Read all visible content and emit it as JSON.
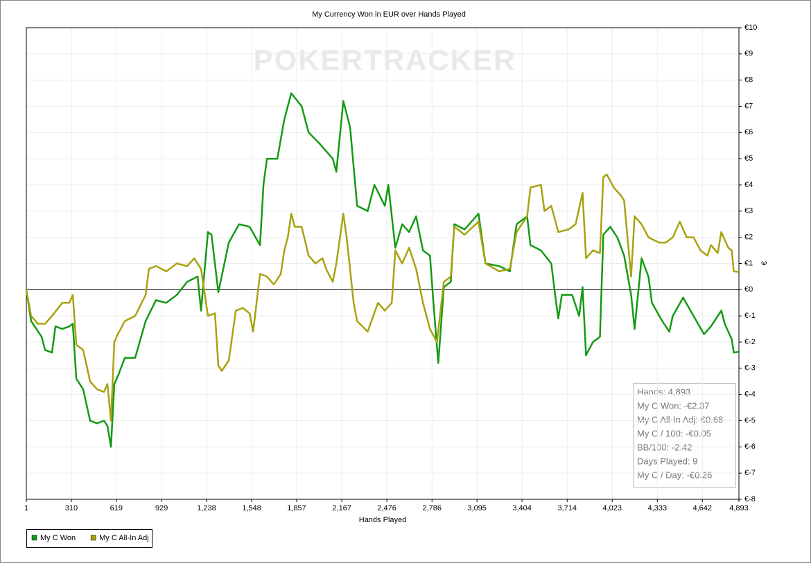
{
  "chart_data": {
    "type": "line",
    "title": "My Currency Won in EUR over Hands Played",
    "watermark": "POKERTRACKER",
    "x_label": "Hands Played",
    "y_label": "€",
    "xlim": [
      1,
      4893
    ],
    "ylim": [
      -8,
      10
    ],
    "grid": true,
    "legend": "bottom-left",
    "xticks": [
      1,
      310,
      619,
      929,
      {
        "value": 1238,
        "label": "1,238"
      },
      {
        "value": 1548,
        "label": "1,548"
      },
      {
        "value": 1857,
        "label": "1,857"
      },
      {
        "value": 2167,
        "label": "2,167"
      },
      {
        "value": 2476,
        "label": "2,476"
      },
      {
        "value": 2786,
        "label": "2,786"
      },
      {
        "value": 3095,
        "label": "3,095"
      },
      {
        "value": 3404,
        "label": "3,404"
      },
      {
        "value": 3714,
        "label": "3,714"
      },
      {
        "value": 4023,
        "label": "4,023"
      },
      {
        "value": 4333,
        "label": "4,333"
      },
      {
        "value": 4642,
        "label": "4,642"
      },
      {
        "value": 4893,
        "label": "4,893"
      }
    ],
    "yticks": [
      {
        "value": 10,
        "label": "€10"
      },
      {
        "value": 9,
        "label": "€9"
      },
      {
        "value": 8,
        "label": "€8"
      },
      {
        "value": 7,
        "label": "€7"
      },
      {
        "value": 6,
        "label": "€6"
      },
      {
        "value": 5,
        "label": "€5"
      },
      {
        "value": 4,
        "label": "€4"
      },
      {
        "value": 3,
        "label": "€3"
      },
      {
        "value": 2,
        "label": "€2"
      },
      {
        "value": 1,
        "label": "€1"
      },
      {
        "value": 0,
        "label": "€0"
      },
      {
        "value": -1,
        "label": "€-1"
      },
      {
        "value": -2,
        "label": "€-2"
      },
      {
        "value": -3,
        "label": "€-3"
      },
      {
        "value": -4,
        "label": "€-4"
      },
      {
        "value": -5,
        "label": "€-5"
      },
      {
        "value": -6,
        "label": "€-6"
      },
      {
        "value": -7,
        "label": "€-7"
      },
      {
        "value": -8,
        "label": "€-8"
      }
    ],
    "stats": [
      "Hands: 4,893",
      "My C Won: -€2.37",
      "My C All-In Adj: €0.68",
      "My C / 100: -€0.05",
      "BB/100: -2.42",
      "Days Played: 9",
      "My C / Day: -€0.26"
    ],
    "series": [
      {
        "name": "My C Won",
        "color": "#149a14",
        "x": [
          1,
          34,
          106,
          130,
          177,
          201,
          248,
          296,
          320,
          344,
          391,
          439,
          486,
          534,
          558,
          582,
          605,
          629,
          677,
          748,
          820,
          891,
          962,
          1034,
          1105,
          1177,
          1200,
          1248,
          1272,
          1319,
          1391,
          1462,
          1534,
          1605,
          1629,
          1653,
          1724,
          1772,
          1820,
          1891,
          1939,
          2010,
          2105,
          2129,
          2177,
          2224,
          2272,
          2344,
          2391,
          2462,
          2486,
          2534,
          2581,
          2629,
          2677,
          2724,
          2772,
          2796,
          2829,
          2867,
          2915,
          2939,
          3010,
          3105,
          3153,
          3248,
          3320,
          3367,
          3439,
          3462,
          3534,
          3605,
          3629,
          3653,
          3677,
          3748,
          3796,
          3820,
          3843,
          3891,
          3939,
          3962,
          4010,
          4058,
          4105,
          4153,
          4177,
          4225,
          4272,
          4296,
          4367,
          4415,
          4439,
          4510,
          4582,
          4653,
          4701,
          4772,
          4796,
          4844,
          4858,
          4893
        ],
        "values": [
          0,
          -1.2,
          -1.8,
          -2.3,
          -2.4,
          -1.4,
          -1.5,
          -1.4,
          -1.3,
          -3.4,
          -3.8,
          -5.0,
          -5.1,
          -5.0,
          -5.2,
          -6.0,
          -3.6,
          -3.3,
          -2.6,
          -2.6,
          -1.2,
          -0.4,
          -0.5,
          -0.2,
          0.3,
          0.5,
          -0.8,
          2.2,
          2.1,
          -0.1,
          1.8,
          2.5,
          2.4,
          1.7,
          4.0,
          5.0,
          5.0,
          6.5,
          7.5,
          7.0,
          6.0,
          5.6,
          5.0,
          4.5,
          7.2,
          6.2,
          3.2,
          3.0,
          4.0,
          3.2,
          4.0,
          1.6,
          2.5,
          2.2,
          2.8,
          1.5,
          1.3,
          -0.5,
          -2.8,
          0.1,
          0.3,
          2.5,
          2.3,
          2.9,
          1.0,
          0.9,
          0.7,
          2.5,
          2.8,
          1.7,
          1.5,
          1.0,
          -0.1,
          -1.1,
          -0.2,
          -0.2,
          -1.0,
          0.1,
          -2.5,
          -2.0,
          -1.8,
          2.1,
          2.4,
          2.0,
          1.3,
          -0.2,
          -1.5,
          1.2,
          0.5,
          -0.5,
          -1.2,
          -1.6,
          -1.0,
          -0.3,
          -1.0,
          -1.7,
          -1.4,
          -0.8,
          -1.3,
          -1.9,
          -2.4,
          -2.37
        ]
      },
      {
        "name": "My C All-In Adj",
        "color": "#a9a20f",
        "x": [
          1,
          34,
          80,
          130,
          177,
          248,
          296,
          320,
          344,
          391,
          439,
          486,
          534,
          558,
          582,
          605,
          629,
          677,
          748,
          820,
          843,
          891,
          962,
          1034,
          1105,
          1153,
          1200,
          1248,
          1296,
          1319,
          1343,
          1391,
          1439,
          1486,
          1534,
          1558,
          1605,
          1653,
          1700,
          1748,
          1772,
          1796,
          1820,
          1844,
          1891,
          1939,
          1986,
          2034,
          2058,
          2105,
          2129,
          2177,
          2200,
          2248,
          2272,
          2344,
          2415,
          2462,
          2510,
          2534,
          2581,
          2629,
          2677,
          2724,
          2772,
          2820,
          2867,
          2915,
          2939,
          3010,
          3105,
          3153,
          3248,
          3320,
          3367,
          3439,
          3462,
          3534,
          3558,
          3605,
          3653,
          3724,
          3772,
          3820,
          3843,
          3891,
          3939,
          3962,
          3986,
          4034,
          4082,
          4105,
          4153,
          4177,
          4225,
          4272,
          4344,
          4391,
          4439,
          4487,
          4534,
          4582,
          4629,
          4677,
          4701,
          4748,
          4772,
          4820,
          4844,
          4858,
          4893
        ],
        "values": [
          0,
          -1.0,
          -1.3,
          -1.3,
          -1.0,
          -0.5,
          -0.5,
          -0.2,
          -2.1,
          -2.3,
          -3.5,
          -3.8,
          -3.9,
          -3.6,
          -5.0,
          -2.0,
          -1.7,
          -1.2,
          -1.0,
          -0.2,
          0.8,
          0.9,
          0.7,
          1.0,
          0.9,
          1.2,
          0.8,
          -1.0,
          -0.9,
          -2.9,
          -3.1,
          -2.7,
          -0.8,
          -0.7,
          -0.9,
          -1.6,
          0.6,
          0.5,
          0.2,
          0.6,
          1.5,
          2.0,
          2.9,
          2.4,
          2.4,
          1.3,
          1.0,
          1.2,
          0.8,
          0.3,
          1.0,
          2.9,
          2.0,
          -0.5,
          -1.2,
          -1.6,
          -0.5,
          -0.8,
          -0.5,
          1.5,
          1.0,
          1.6,
          0.8,
          -0.5,
          -1.5,
          -2.0,
          0.3,
          0.5,
          2.4,
          2.1,
          2.6,
          1.0,
          0.7,
          0.8,
          2.2,
          2.8,
          3.9,
          4.0,
          3.0,
          3.2,
          2.2,
          2.3,
          2.5,
          3.7,
          1.2,
          1.5,
          1.4,
          4.3,
          4.4,
          3.9,
          3.6,
          3.4,
          0.5,
          2.8,
          2.5,
          2.0,
          1.8,
          1.8,
          2.0,
          2.6,
          2.0,
          2.0,
          1.5,
          1.3,
          1.7,
          1.4,
          2.2,
          1.6,
          1.5,
          0.7,
          0.68
        ]
      }
    ]
  }
}
